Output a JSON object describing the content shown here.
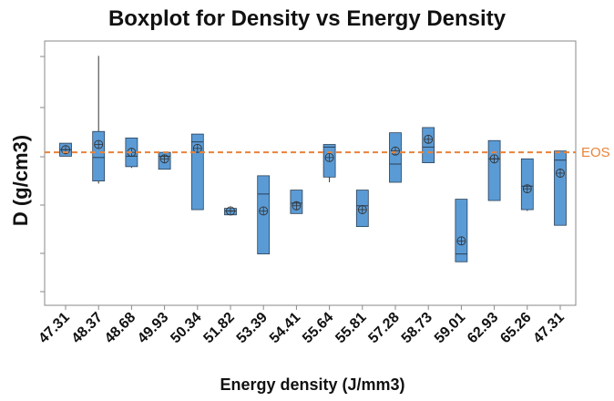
{
  "chart_data": {
    "type": "boxplot",
    "title": "Boxplot for Density vs Energy Density",
    "xlabel": "Energy density (J/mm3)",
    "ylabel": "D (g/cm3)",
    "categories": [
      "47.31",
      "48.37",
      "48.68",
      "49.93",
      "50.34",
      "51.82",
      "53.39",
      "54.41",
      "55.64",
      "55.81",
      "57.28",
      "58.73",
      "59.01",
      "62.93",
      "65.26",
      "47.31"
    ],
    "ylim": [
      0,
      1
    ],
    "y_tick_labels_shown": false,
    "grid": false,
    "box_color": "#5B9BD5",
    "reference_line": {
      "label": "EOS",
      "value": 0.58,
      "color": "#E8833A",
      "style": "dashed"
    },
    "boxes": [
      {
        "category": "47.31",
        "whisker_low": 0.565,
        "q1": 0.565,
        "median": 0.59,
        "q3": 0.615,
        "whisker_high": 0.615,
        "mean": 0.59
      },
      {
        "category": "48.37",
        "whisker_low": 0.46,
        "q1": 0.47,
        "median": 0.56,
        "q3": 0.66,
        "whisker_high": 0.95,
        "mean": 0.61
      },
      {
        "category": "48.68",
        "whisker_low": 0.52,
        "q1": 0.525,
        "median": 0.565,
        "q3": 0.635,
        "whisker_high": 0.635,
        "mean": 0.58
      },
      {
        "category": "49.93",
        "whisker_low": 0.515,
        "q1": 0.515,
        "median": 0.565,
        "q3": 0.58,
        "whisker_high": 0.58,
        "mean": 0.555
      },
      {
        "category": "50.34",
        "whisker_low": 0.36,
        "q1": 0.36,
        "median": 0.62,
        "q3": 0.65,
        "whisker_high": 0.65,
        "mean": 0.595
      },
      {
        "category": "51.82",
        "whisker_low": 0.34,
        "q1": 0.34,
        "median": 0.355,
        "q3": 0.365,
        "whisker_high": 0.365,
        "mean": 0.355
      },
      {
        "category": "53.39",
        "whisker_low": 0.19,
        "q1": 0.19,
        "median": 0.42,
        "q3": 0.49,
        "whisker_high": 0.49,
        "mean": 0.355
      },
      {
        "category": "54.41",
        "whisker_low": 0.345,
        "q1": 0.345,
        "median": 0.385,
        "q3": 0.435,
        "whisker_high": 0.435,
        "mean": 0.375
      },
      {
        "category": "55.64",
        "whisker_low": 0.465,
        "q1": 0.485,
        "median": 0.6,
        "q3": 0.61,
        "whisker_high": 0.61,
        "mean": 0.56
      },
      {
        "category": "55.81",
        "whisker_low": 0.295,
        "q1": 0.295,
        "median": 0.375,
        "q3": 0.435,
        "whisker_high": 0.435,
        "mean": 0.36
      },
      {
        "category": "57.28",
        "whisker_low": 0.465,
        "q1": 0.465,
        "median": 0.535,
        "q3": 0.655,
        "whisker_high": 0.655,
        "mean": 0.585
      },
      {
        "category": "58.73",
        "whisker_low": 0.54,
        "q1": 0.54,
        "median": 0.6,
        "q3": 0.675,
        "whisker_high": 0.675,
        "mean": 0.63
      },
      {
        "category": "59.01",
        "whisker_low": 0.16,
        "q1": 0.16,
        "median": 0.19,
        "q3": 0.4,
        "whisker_high": 0.4,
        "mean": 0.24
      },
      {
        "category": "62.93",
        "whisker_low": 0.395,
        "q1": 0.395,
        "median": 0.555,
        "q3": 0.625,
        "whisker_high": 0.625,
        "mean": 0.555
      },
      {
        "category": "65.26",
        "whisker_low": 0.355,
        "q1": 0.36,
        "median": 0.45,
        "q3": 0.555,
        "whisker_high": 0.555,
        "mean": 0.44
      },
      {
        "category": "47.31",
        "whisker_low": 0.3,
        "q1": 0.3,
        "median": 0.55,
        "q3": 0.585,
        "whisker_high": 0.585,
        "mean": 0.5
      }
    ]
  }
}
